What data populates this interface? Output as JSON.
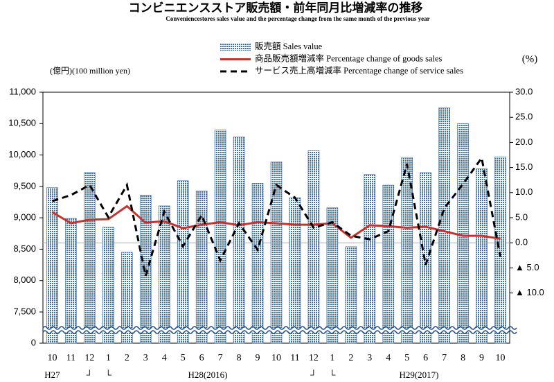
{
  "chart_data": {
    "type": "bar_line",
    "title": "コンビニエンスストア販売額・前年同月比増減率の推移",
    "subtitle": "Conveniencestores sales value and the percentage change from the same month of the previous year",
    "ylabel": "(億円)(100 million yen)",
    "y2label": "(%)",
    "categories": [
      "10",
      "11",
      "12",
      "1",
      "2",
      "3",
      "4",
      "5",
      "6",
      "7",
      "8",
      "9",
      "10",
      "11",
      "12",
      "1",
      "2",
      "3",
      "4",
      "5",
      "6",
      "7",
      "8",
      "9",
      "10"
    ],
    "year_labels": [
      "H27",
      "┘",
      "└",
      "H28(2016)",
      "┘",
      "└",
      "H29(2017)"
    ],
    "series": [
      {
        "name": "販売額 Sales value",
        "type": "bar",
        "color": "#3d6fb5",
        "values": [
          9480,
          8990,
          9720,
          8850,
          8450,
          9360,
          9190,
          9590,
          9430,
          10400,
          10290,
          9550,
          9890,
          9320,
          10070,
          9160,
          8540,
          9690,
          9520,
          9960,
          9720,
          10750,
          10500,
          9780,
          9970
        ]
      },
      {
        "name": "商品販売額増減率 Percentage change of goods sales",
        "type": "line",
        "axis": "y2",
        "color": "#c8322d",
        "values": [
          6.1,
          3.9,
          4.6,
          4.7,
          7.3,
          4.0,
          4.3,
          2.9,
          3.6,
          4.1,
          3.5,
          4.1,
          3.9,
          3.6,
          3.6,
          3.9,
          1.0,
          3.5,
          3.3,
          3.0,
          3.2,
          2.3,
          1.4,
          1.4,
          0.8
        ]
      },
      {
        "name": "サービス売上高増減率 Percentage change of service sales",
        "type": "line",
        "axis": "y2",
        "color": "#000000",
        "dashed": true,
        "values": [
          8.3,
          9.5,
          11.5,
          5.1,
          11.5,
          -6.6,
          6.2,
          -0.7,
          5.5,
          -3.5,
          3.9,
          -1.4,
          11.5,
          9.0,
          3.0,
          4.1,
          1.4,
          0.7,
          2.3,
          15.7,
          -4.4,
          6.9,
          11.7,
          16.9,
          -2.8
        ]
      }
    ],
    "ylim": [
      0,
      11000
    ],
    "ybreak": 7500,
    "yticks": [
      0,
      {
        "value": 7500,
        "label": "7,500"
      },
      {
        "value": 8000,
        "label": "8,000"
      },
      {
        "value": 8500,
        "label": "8,500"
      },
      {
        "value": 9000,
        "label": "9,000"
      },
      {
        "value": 9500,
        "label": "9,500"
      },
      {
        "value": 10000,
        "label": "10,000"
      },
      {
        "value": 10500,
        "label": "10,500"
      },
      {
        "value": 11000,
        "label": "11,000"
      }
    ],
    "y2lim": [
      -20,
      30
    ],
    "y2ticks": [
      {
        "value": -10,
        "label": "▲ 10.0"
      },
      {
        "value": -5,
        "label": "▲ 5.0"
      },
      {
        "value": 0,
        "label": "0.0"
      },
      {
        "value": 5,
        "label": "5.0"
      },
      {
        "value": 10,
        "label": "10.0"
      },
      {
        "value": 15,
        "label": "15.0"
      },
      {
        "value": 20,
        "label": "20.0"
      },
      {
        "value": 25,
        "label": "25.0"
      },
      {
        "value": 30,
        "label": "30.0"
      }
    ]
  }
}
